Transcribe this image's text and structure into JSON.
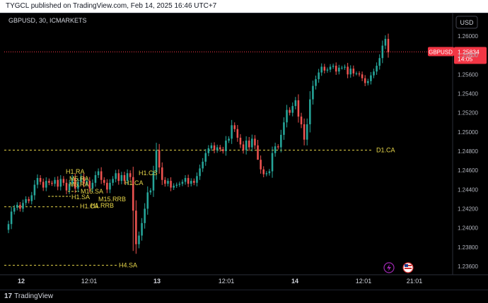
{
  "publisher_line": "TYGCL published on TradingView.com, Feb 14, 2025 16:46 UTC+7",
  "footer_brand": "TradingView",
  "footer_logo": "17",
  "currency_button": "USD",
  "colors": {
    "up": "#26a69a",
    "down": "#ef5350",
    "level": "#e8d74a",
    "price_tag": "#f23645"
  },
  "chart_data": {
    "type": "candlestick",
    "title": "GBPUSD, 30, ICMARKETS",
    "ylim": [
      1.235,
      1.261
    ],
    "yticks": [
      "1.26000",
      "1.25800",
      "1.25600",
      "1.25400",
      "1.25200",
      "1.25000",
      "1.24800",
      "1.24600",
      "1.24400",
      "1.24200",
      "1.24000",
      "1.23800",
      "1.23600"
    ],
    "xticks": [
      "12",
      "12:01",
      "13",
      "12:01",
      "14",
      "12:01",
      "21:01"
    ],
    "last_price": {
      "symbol": "GBPUSD",
      "price": "1.25834",
      "countdown": "14:05",
      "value": 1.25834
    },
    "levels": [
      {
        "label": "D1.CA",
        "value": 1.2481
      },
      {
        "label": "H4.SA",
        "value": 1.2361
      },
      {
        "label": "H1.CA",
        "value": 1.2422
      }
    ],
    "annotations": [
      "H1.RA",
      "M5.RA",
      "M5.RA",
      "M15.SA",
      "H1.SA",
      "M15.RRB",
      "H1.CA",
      "H1.RRB",
      "H1.CS",
      "H1.CA"
    ],
    "closes": [
      1.2404,
      1.2417,
      1.2421,
      1.2424,
      1.242,
      1.2426,
      1.243,
      1.2428,
      1.2434,
      1.2445,
      1.2452,
      1.2448,
      1.2442,
      1.2449,
      1.2447,
      1.2446,
      1.245,
      1.2443,
      1.2451,
      1.2447,
      1.2439,
      1.2446,
      1.2452,
      1.2441,
      1.2448,
      1.2453,
      1.2446,
      1.2449,
      1.2441,
      1.2447,
      1.2455,
      1.2459,
      1.245,
      1.2447,
      1.244,
      1.2447,
      1.2451,
      1.2457,
      1.2449,
      1.2455,
      1.2449,
      1.2457,
      1.2453,
      1.2418,
      1.2383,
      1.2392,
      1.2405,
      1.242,
      1.2437,
      1.2439,
      1.2458,
      1.2481,
      1.2463,
      1.245,
      1.2446,
      1.2449,
      1.2442,
      1.2444,
      1.2445,
      1.2446,
      1.2448,
      1.2452,
      1.2446,
      1.2449,
      1.2447,
      1.2454,
      1.2462,
      1.2469,
      1.2478,
      1.2483,
      1.2486,
      1.2481,
      1.2484,
      1.2482,
      1.248,
      1.2491,
      1.2493,
      1.2507,
      1.2503,
      1.2494,
      1.2487,
      1.2481,
      1.2491,
      1.2484,
      1.2493,
      1.2486,
      1.2471,
      1.2461,
      1.2456,
      1.2457,
      1.2459,
      1.2478,
      1.2485,
      1.2484,
      1.2497,
      1.251,
      1.2523,
      1.252,
      1.2527,
      1.2533,
      1.2516,
      1.2508,
      1.2492,
      1.2508,
      1.2534,
      1.2548,
      1.2555,
      1.2562,
      1.2568,
      1.2564,
      1.2565,
      1.2568,
      1.2569,
      1.2563,
      1.2567,
      1.2567,
      1.2568,
      1.256,
      1.2566,
      1.2561,
      1.2561,
      1.256,
      1.2556,
      1.2551,
      1.2553,
      1.2559,
      1.2563,
      1.2569,
      1.2577,
      1.259,
      1.2597,
      1.2583
    ]
  }
}
